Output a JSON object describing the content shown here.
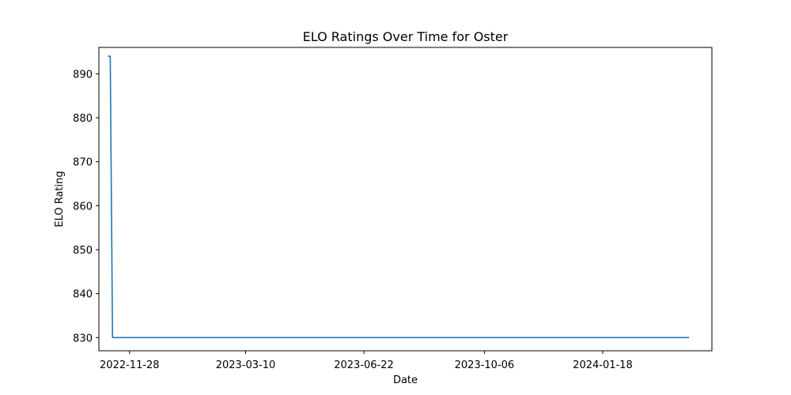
{
  "chart_data": {
    "type": "line",
    "title": "ELO Ratings Over Time for Oster",
    "xlabel": "Date",
    "ylabel": "ELO Rating",
    "x_ticks": [
      "2022-11-28",
      "2023-03-10",
      "2023-06-22",
      "2023-10-06",
      "2024-01-18"
    ],
    "y_ticks": [
      830,
      840,
      850,
      860,
      870,
      880,
      890
    ],
    "xlim": [
      "2022-11-01",
      "2024-04-23"
    ],
    "ylim": [
      827,
      896
    ],
    "grid": false,
    "series": [
      {
        "color": "#1f77b4",
        "points": [
          {
            "x": "2022-11-09",
            "y": 894.0
          },
          {
            "x": "2022-11-11",
            "y": 894.0
          },
          {
            "x": "2022-11-11",
            "y": 893.5
          },
          {
            "x": "2022-11-13",
            "y": 830.0
          },
          {
            "x": "2024-04-03",
            "y": 830.0
          }
        ]
      }
    ]
  }
}
